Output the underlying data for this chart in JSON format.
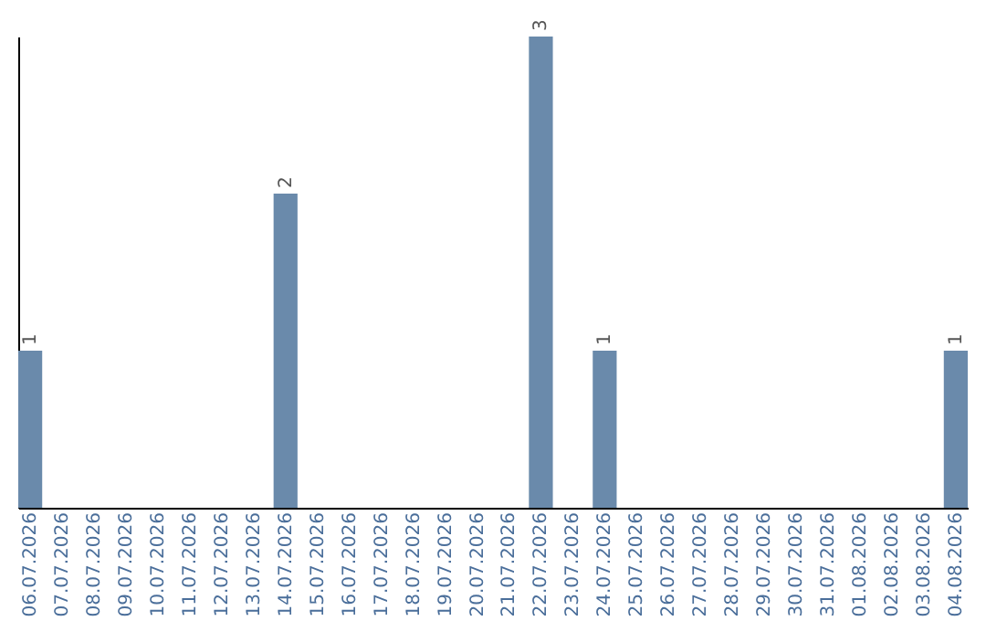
{
  "chart_data": {
    "type": "bar",
    "categories": [
      "06.07.2026",
      "07.07.2026",
      "08.07.2026",
      "09.07.2026",
      "10.07.2026",
      "11.07.2026",
      "12.07.2026",
      "13.07.2026",
      "14.07.2026",
      "15.07.2026",
      "16.07.2026",
      "17.07.2026",
      "18.07.2026",
      "19.07.2026",
      "20.07.2026",
      "21.07.2026",
      "22.07.2026",
      "23.07.2026",
      "24.07.2026",
      "25.07.2026",
      "26.07.2026",
      "27.07.2026",
      "28.07.2026",
      "29.07.2026",
      "30.07.2026",
      "31.07.2026",
      "01.08.2026",
      "02.08.2026",
      "03.08.2026",
      "04.08.2026"
    ],
    "values": [
      1,
      0,
      0,
      0,
      0,
      0,
      0,
      0,
      2,
      0,
      0,
      0,
      0,
      0,
      0,
      0,
      3,
      0,
      1,
      0,
      0,
      0,
      0,
      0,
      0,
      0,
      0,
      0,
      0,
      1
    ],
    "value_labels": [
      "1",
      null,
      null,
      null,
      null,
      null,
      null,
      null,
      "2",
      null,
      null,
      null,
      null,
      null,
      null,
      null,
      "3",
      null,
      "1",
      null,
      null,
      null,
      null,
      null,
      null,
      null,
      null,
      null,
      null,
      "1"
    ],
    "color": "#6a8aab",
    "ylim": [
      0,
      3
    ],
    "tick_labels": "x",
    "grid": false
  }
}
